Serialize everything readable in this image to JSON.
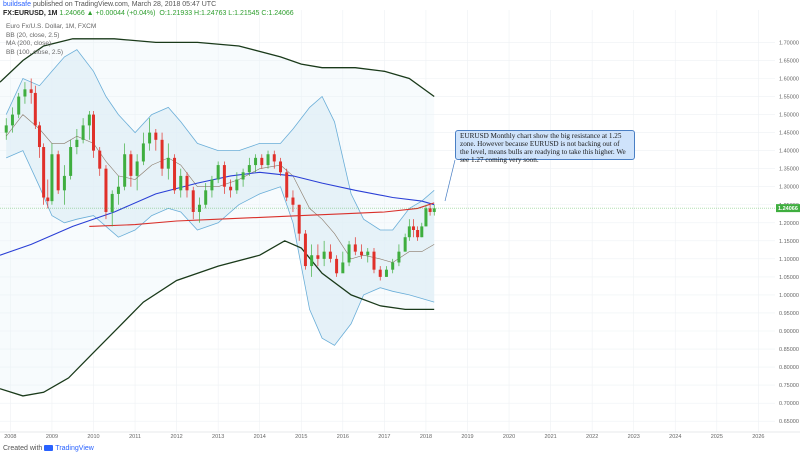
{
  "header": {
    "author": "buildsafe",
    "published": "published on TradingView.com, March 28, 2018 05:47 UTC"
  },
  "symbol_bar": {
    "symbol": "FX:EURUSD, 1M",
    "change": "1.24066 ▲ +0.00044 (+0.04%)",
    "ohlc": "O:1.21933 H:1.24763 L:1.21545 C:1.24066"
  },
  "legend": {
    "title": "Euro Fx/U.S. Dollar, 1M, FXCM",
    "items": [
      "BB (20, close, 2.5)",
      "MA (200, close)",
      "BB (100, close, 2.5)"
    ]
  },
  "callout": {
    "text": "EURUSD Monthly chart show the big resistance at 1.25 zone. However because EURUSD is not backing out of the level, means bulls are readying to take this higher. We see 1.27 coming very soon."
  },
  "footer": {
    "created": "Created with",
    "brand": "TradingView"
  },
  "colors": {
    "up": "#3fae3f",
    "down": "#e0302a",
    "bb20_fill": "#dcecf6",
    "bb20_line": "#6aaed8",
    "ma200": "#d9302a",
    "ma_blue": "#2a3fd6",
    "bb100": "#1a3a1a",
    "price_tag": "#3fae3f"
  },
  "chart_data": {
    "type": "candlestick",
    "symbol": "EURUSD",
    "timeframe": "1M",
    "x_ticks": [
      "2008",
      "2009",
      "2010",
      "2011",
      "2012",
      "2013",
      "2014",
      "2015",
      "2016",
      "2017",
      "2018",
      "2019",
      "2020",
      "2021",
      "2022",
      "2023",
      "2024",
      "2025",
      "2026"
    ],
    "y_ticks": [
      "1.70000",
      "1.65000",
      "1.60000",
      "1.55000",
      "1.50000",
      "1.45000",
      "1.40000",
      "1.35000",
      "1.30000",
      "1.25000",
      "1.20000",
      "1.15000",
      "1.10000",
      "1.05000",
      "1.00000",
      "0.95000",
      "0.90000",
      "0.85000",
      "0.80000",
      "0.75000",
      "0.70000",
      "0.65000"
    ],
    "ylim": [
      0.62,
      1.74
    ],
    "xlim": [
      2007.75,
      2026.4
    ],
    "last_price": "1.24066",
    "candles": [
      {
        "t": 2007.9,
        "o": 1.45,
        "h": 1.49,
        "l": 1.43,
        "c": 1.47
      },
      {
        "t": 2008.05,
        "o": 1.47,
        "h": 1.52,
        "l": 1.45,
        "c": 1.5
      },
      {
        "t": 2008.2,
        "o": 1.5,
        "h": 1.56,
        "l": 1.49,
        "c": 1.55
      },
      {
        "t": 2008.35,
        "o": 1.55,
        "h": 1.59,
        "l": 1.53,
        "c": 1.57
      },
      {
        "t": 2008.5,
        "o": 1.57,
        "h": 1.6,
        "l": 1.53,
        "c": 1.56
      },
      {
        "t": 2008.6,
        "o": 1.56,
        "h": 1.58,
        "l": 1.46,
        "c": 1.47
      },
      {
        "t": 2008.7,
        "o": 1.47,
        "h": 1.48,
        "l": 1.38,
        "c": 1.41
      },
      {
        "t": 2008.8,
        "o": 1.41,
        "h": 1.42,
        "l": 1.25,
        "c": 1.27
      },
      {
        "t": 2008.9,
        "o": 1.27,
        "h": 1.32,
        "l": 1.24,
        "c": 1.26
      },
      {
        "t": 2009.0,
        "o": 1.26,
        "h": 1.42,
        "l": 1.25,
        "c": 1.39
      },
      {
        "t": 2009.15,
        "o": 1.39,
        "h": 1.4,
        "l": 1.28,
        "c": 1.29
      },
      {
        "t": 2009.3,
        "o": 1.29,
        "h": 1.36,
        "l": 1.25,
        "c": 1.33
      },
      {
        "t": 2009.45,
        "o": 1.33,
        "h": 1.43,
        "l": 1.32,
        "c": 1.41
      },
      {
        "t": 2009.6,
        "o": 1.41,
        "h": 1.46,
        "l": 1.39,
        "c": 1.43
      },
      {
        "t": 2009.75,
        "o": 1.43,
        "h": 1.49,
        "l": 1.42,
        "c": 1.47
      },
      {
        "t": 2009.9,
        "o": 1.47,
        "h": 1.51,
        "l": 1.43,
        "c": 1.5
      },
      {
        "t": 2010.0,
        "o": 1.5,
        "h": 1.51,
        "l": 1.38,
        "c": 1.4
      },
      {
        "t": 2010.15,
        "o": 1.4,
        "h": 1.41,
        "l": 1.33,
        "c": 1.35
      },
      {
        "t": 2010.3,
        "o": 1.35,
        "h": 1.36,
        "l": 1.21,
        "c": 1.23
      },
      {
        "t": 2010.45,
        "o": 1.23,
        "h": 1.29,
        "l": 1.19,
        "c": 1.28
      },
      {
        "t": 2010.6,
        "o": 1.28,
        "h": 1.33,
        "l": 1.25,
        "c": 1.3
      },
      {
        "t": 2010.75,
        "o": 1.3,
        "h": 1.42,
        "l": 1.29,
        "c": 1.39
      },
      {
        "t": 2010.9,
        "o": 1.39,
        "h": 1.4,
        "l": 1.3,
        "c": 1.33
      },
      {
        "t": 2011.05,
        "o": 1.33,
        "h": 1.39,
        "l": 1.29,
        "c": 1.37
      },
      {
        "t": 2011.2,
        "o": 1.37,
        "h": 1.45,
        "l": 1.36,
        "c": 1.42
      },
      {
        "t": 2011.35,
        "o": 1.42,
        "h": 1.49,
        "l": 1.4,
        "c": 1.45
      },
      {
        "t": 2011.5,
        "o": 1.45,
        "h": 1.46,
        "l": 1.4,
        "c": 1.43
      },
      {
        "t": 2011.65,
        "o": 1.43,
        "h": 1.45,
        "l": 1.33,
        "c": 1.35
      },
      {
        "t": 2011.8,
        "o": 1.35,
        "h": 1.42,
        "l": 1.32,
        "c": 1.38
      },
      {
        "t": 2011.95,
        "o": 1.38,
        "h": 1.39,
        "l": 1.28,
        "c": 1.29
      },
      {
        "t": 2012.1,
        "o": 1.29,
        "h": 1.35,
        "l": 1.27,
        "c": 1.33
      },
      {
        "t": 2012.25,
        "o": 1.33,
        "h": 1.34,
        "l": 1.27,
        "c": 1.29
      },
      {
        "t": 2012.4,
        "o": 1.29,
        "h": 1.3,
        "l": 1.21,
        "c": 1.23
      },
      {
        "t": 2012.55,
        "o": 1.23,
        "h": 1.27,
        "l": 1.2,
        "c": 1.25
      },
      {
        "t": 2012.7,
        "o": 1.25,
        "h": 1.31,
        "l": 1.24,
        "c": 1.29
      },
      {
        "t": 2012.85,
        "o": 1.29,
        "h": 1.33,
        "l": 1.27,
        "c": 1.32
      },
      {
        "t": 2013.0,
        "o": 1.32,
        "h": 1.37,
        "l": 1.31,
        "c": 1.36
      },
      {
        "t": 2013.15,
        "o": 1.36,
        "h": 1.37,
        "l": 1.28,
        "c": 1.3
      },
      {
        "t": 2013.3,
        "o": 1.3,
        "h": 1.32,
        "l": 1.27,
        "c": 1.29
      },
      {
        "t": 2013.45,
        "o": 1.29,
        "h": 1.34,
        "l": 1.28,
        "c": 1.32
      },
      {
        "t": 2013.6,
        "o": 1.32,
        "h": 1.35,
        "l": 1.3,
        "c": 1.34
      },
      {
        "t": 2013.75,
        "o": 1.34,
        "h": 1.38,
        "l": 1.33,
        "c": 1.36
      },
      {
        "t": 2013.9,
        "o": 1.36,
        "h": 1.39,
        "l": 1.34,
        "c": 1.38
      },
      {
        "t": 2014.05,
        "o": 1.38,
        "h": 1.39,
        "l": 1.35,
        "c": 1.36
      },
      {
        "t": 2014.2,
        "o": 1.36,
        "h": 1.4,
        "l": 1.35,
        "c": 1.39
      },
      {
        "t": 2014.35,
        "o": 1.39,
        "h": 1.4,
        "l": 1.35,
        "c": 1.37
      },
      {
        "t": 2014.5,
        "o": 1.37,
        "h": 1.38,
        "l": 1.33,
        "c": 1.34
      },
      {
        "t": 2014.65,
        "o": 1.34,
        "h": 1.35,
        "l": 1.26,
        "c": 1.27
      },
      {
        "t": 2014.8,
        "o": 1.27,
        "h": 1.29,
        "l": 1.23,
        "c": 1.25
      },
      {
        "t": 2014.95,
        "o": 1.25,
        "h": 1.25,
        "l": 1.15,
        "c": 1.17
      },
      {
        "t": 2015.1,
        "o": 1.17,
        "h": 1.18,
        "l": 1.07,
        "c": 1.08
      },
      {
        "t": 2015.25,
        "o": 1.08,
        "h": 1.14,
        "l": 1.05,
        "c": 1.11
      },
      {
        "t": 2015.4,
        "o": 1.11,
        "h": 1.14,
        "l": 1.08,
        "c": 1.1
      },
      {
        "t": 2015.55,
        "o": 1.1,
        "h": 1.15,
        "l": 1.08,
        "c": 1.12
      },
      {
        "t": 2015.7,
        "o": 1.12,
        "h": 1.14,
        "l": 1.09,
        "c": 1.1
      },
      {
        "t": 2015.85,
        "o": 1.1,
        "h": 1.11,
        "l": 1.05,
        "c": 1.06
      },
      {
        "t": 2016.0,
        "o": 1.06,
        "h": 1.12,
        "l": 1.07,
        "c": 1.09
      },
      {
        "t": 2016.15,
        "o": 1.09,
        "h": 1.15,
        "l": 1.08,
        "c": 1.14
      },
      {
        "t": 2016.3,
        "o": 1.14,
        "h": 1.16,
        "l": 1.11,
        "c": 1.12
      },
      {
        "t": 2016.45,
        "o": 1.12,
        "h": 1.14,
        "l": 1.1,
        "c": 1.11
      },
      {
        "t": 2016.6,
        "o": 1.11,
        "h": 1.13,
        "l": 1.09,
        "c": 1.12
      },
      {
        "t": 2016.75,
        "o": 1.12,
        "h": 1.13,
        "l": 1.06,
        "c": 1.07
      },
      {
        "t": 2016.9,
        "o": 1.07,
        "h": 1.08,
        "l": 1.04,
        "c": 1.05
      },
      {
        "t": 2017.05,
        "o": 1.05,
        "h": 1.08,
        "l": 1.05,
        "c": 1.07
      },
      {
        "t": 2017.2,
        "o": 1.07,
        "h": 1.1,
        "l": 1.06,
        "c": 1.09
      },
      {
        "t": 2017.35,
        "o": 1.09,
        "h": 1.14,
        "l": 1.08,
        "c": 1.12
      },
      {
        "t": 2017.5,
        "o": 1.12,
        "h": 1.17,
        "l": 1.12,
        "c": 1.16
      },
      {
        "t": 2017.6,
        "o": 1.16,
        "h": 1.21,
        "l": 1.15,
        "c": 1.19
      },
      {
        "t": 2017.7,
        "o": 1.19,
        "h": 1.21,
        "l": 1.16,
        "c": 1.18
      },
      {
        "t": 2017.8,
        "o": 1.18,
        "h": 1.19,
        "l": 1.15,
        "c": 1.16
      },
      {
        "t": 2017.9,
        "o": 1.16,
        "h": 1.2,
        "l": 1.16,
        "c": 1.19
      },
      {
        "t": 2018.0,
        "o": 1.19,
        "h": 1.25,
        "l": 1.19,
        "c": 1.24
      },
      {
        "t": 2018.1,
        "o": 1.24,
        "h": 1.25,
        "l": 1.22,
        "c": 1.23
      },
      {
        "t": 2018.2,
        "o": 1.23,
        "h": 1.25,
        "l": 1.22,
        "c": 1.24
      }
    ],
    "bb20_upper": [
      [
        2007.9,
        1.5
      ],
      [
        2008.3,
        1.6
      ],
      [
        2008.7,
        1.58
      ],
      [
        2009.0,
        1.62
      ],
      [
        2009.3,
        1.66
      ],
      [
        2009.6,
        1.68
      ],
      [
        2010.0,
        1.62
      ],
      [
        2010.3,
        1.55
      ],
      [
        2010.6,
        1.5
      ],
      [
        2011.0,
        1.45
      ],
      [
        2011.4,
        1.5
      ],
      [
        2011.8,
        1.52
      ],
      [
        2012.1,
        1.48
      ],
      [
        2012.5,
        1.42
      ],
      [
        2013.0,
        1.4
      ],
      [
        2013.5,
        1.4
      ],
      [
        2014.0,
        1.42
      ],
      [
        2014.5,
        1.42
      ],
      [
        2014.8,
        1.46
      ],
      [
        2015.2,
        1.52
      ],
      [
        2015.5,
        1.55
      ],
      [
        2015.8,
        1.48
      ],
      [
        2016.2,
        1.28
      ],
      [
        2016.5,
        1.21
      ],
      [
        2016.9,
        1.18
      ],
      [
        2017.2,
        1.18
      ],
      [
        2017.6,
        1.24
      ],
      [
        2017.9,
        1.26
      ],
      [
        2018.2,
        1.29
      ]
    ],
    "bb20_lower": [
      [
        2007.9,
        1.38
      ],
      [
        2008.3,
        1.4
      ],
      [
        2008.7,
        1.3
      ],
      [
        2009.0,
        1.22
      ],
      [
        2009.3,
        1.2
      ],
      [
        2009.6,
        1.21
      ],
      [
        2010.0,
        1.22
      ],
      [
        2010.3,
        1.19
      ],
      [
        2010.6,
        1.16
      ],
      [
        2011.0,
        1.18
      ],
      [
        2011.4,
        1.22
      ],
      [
        2011.8,
        1.24
      ],
      [
        2012.1,
        1.23
      ],
      [
        2012.5,
        1.18
      ],
      [
        2013.0,
        1.2
      ],
      [
        2013.5,
        1.25
      ],
      [
        2014.0,
        1.28
      ],
      [
        2014.5,
        1.3
      ],
      [
        2014.8,
        1.2
      ],
      [
        2015.2,
        0.96
      ],
      [
        2015.5,
        0.88
      ],
      [
        2015.8,
        0.86
      ],
      [
        2016.2,
        0.92
      ],
      [
        2016.5,
        1.0
      ],
      [
        2016.9,
        1.02
      ],
      [
        2017.2,
        1.01
      ],
      [
        2017.6,
        1.0
      ],
      [
        2017.9,
        0.99
      ],
      [
        2018.2,
        0.98
      ]
    ],
    "bb20_mid": [
      [
        2007.9,
        1.44
      ],
      [
        2008.3,
        1.5
      ],
      [
        2008.7,
        1.46
      ],
      [
        2009.0,
        1.42
      ],
      [
        2009.3,
        1.42
      ],
      [
        2009.6,
        1.44
      ],
      [
        2010.0,
        1.42
      ],
      [
        2010.3,
        1.37
      ],
      [
        2010.6,
        1.33
      ],
      [
        2011.0,
        1.32
      ],
      [
        2011.4,
        1.36
      ],
      [
        2011.8,
        1.38
      ],
      [
        2012.1,
        1.36
      ],
      [
        2012.5,
        1.3
      ],
      [
        2013.0,
        1.3
      ],
      [
        2013.5,
        1.32
      ],
      [
        2014.0,
        1.35
      ],
      [
        2014.5,
        1.36
      ],
      [
        2014.8,
        1.33
      ],
      [
        2015.2,
        1.24
      ],
      [
        2015.5,
        1.21
      ],
      [
        2015.8,
        1.17
      ],
      [
        2016.2,
        1.1
      ],
      [
        2016.5,
        1.11
      ],
      [
        2016.9,
        1.1
      ],
      [
        2017.2,
        1.09
      ],
      [
        2017.6,
        1.12
      ],
      [
        2017.9,
        1.12
      ],
      [
        2018.2,
        1.14
      ]
    ],
    "ma_blue": [
      [
        2007.75,
        1.11
      ],
      [
        2008.5,
        1.14
      ],
      [
        2009.5,
        1.19
      ],
      [
        2010.5,
        1.23
      ],
      [
        2011.5,
        1.28
      ],
      [
        2012.5,
        1.31
      ],
      [
        2013.3,
        1.33
      ],
      [
        2014.0,
        1.34
      ],
      [
        2014.8,
        1.33
      ],
      [
        2015.5,
        1.31
      ],
      [
        2016.3,
        1.29
      ],
      [
        2017.2,
        1.27
      ],
      [
        2017.9,
        1.26
      ],
      [
        2018.2,
        1.25
      ]
    ],
    "ma200": [
      [
        2009.9,
        1.19
      ],
      [
        2011.0,
        1.195
      ],
      [
        2012.0,
        1.205
      ],
      [
        2013.0,
        1.21
      ],
      [
        2014.0,
        1.215
      ],
      [
        2015.0,
        1.22
      ],
      [
        2016.0,
        1.225
      ],
      [
        2017.0,
        1.23
      ],
      [
        2017.8,
        1.24
      ],
      [
        2018.2,
        1.255
      ]
    ],
    "bb100_upper": [
      [
        2007.75,
        1.59
      ],
      [
        2008.3,
        1.65
      ],
      [
        2008.8,
        1.69
      ],
      [
        2009.5,
        1.71
      ],
      [
        2010.5,
        1.71
      ],
      [
        2011.5,
        1.7
      ],
      [
        2012.5,
        1.7
      ],
      [
        2013.5,
        1.69
      ],
      [
        2014.5,
        1.66
      ],
      [
        2015.0,
        1.64
      ],
      [
        2015.5,
        1.63
      ],
      [
        2016.3,
        1.63
      ],
      [
        2017.0,
        1.62
      ],
      [
        2017.6,
        1.6
      ],
      [
        2018.2,
        1.55
      ]
    ],
    "bb100_lower": [
      [
        2007.75,
        0.74
      ],
      [
        2008.3,
        0.72
      ],
      [
        2008.8,
        0.73
      ],
      [
        2009.4,
        0.77
      ],
      [
        2010.0,
        0.84
      ],
      [
        2010.6,
        0.91
      ],
      [
        2011.2,
        0.98
      ],
      [
        2012.0,
        1.04
      ],
      [
        2013.0,
        1.08
      ],
      [
        2014.0,
        1.11
      ],
      [
        2014.6,
        1.15
      ],
      [
        2015.0,
        1.13
      ],
      [
        2015.5,
        1.06
      ],
      [
        2016.2,
        1.0
      ],
      [
        2016.9,
        0.97
      ],
      [
        2017.5,
        0.96
      ],
      [
        2018.2,
        0.96
      ]
    ]
  }
}
